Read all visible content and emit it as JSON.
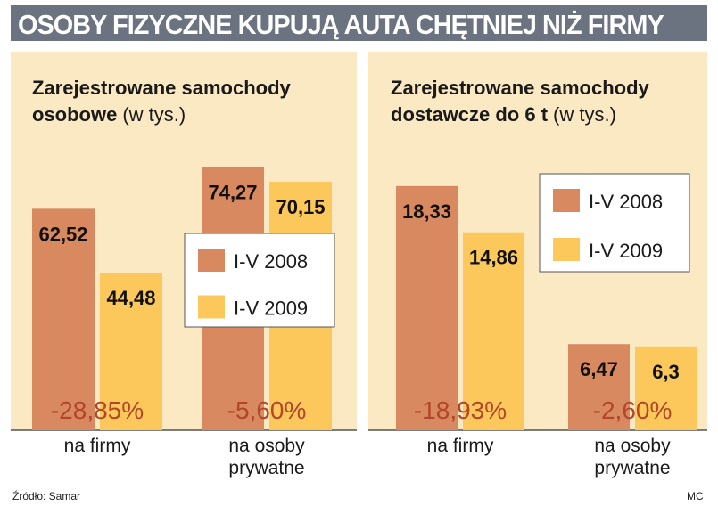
{
  "header": {
    "title": "OSOBY FIZYCZNE KUPUJĄ AUTA CHĘTNIEJ NIŻ FIRMY"
  },
  "footer": {
    "source": "Źródło: Samar",
    "credit": "MC"
  },
  "colors": {
    "panel_bg": "#fbe9c4",
    "series_2008": "#d9895f",
    "series_2009": "#fcc85b",
    "change_text": "#b2452a",
    "header_bg": "#6b7380"
  },
  "chart_data": [
    {
      "type": "bar",
      "title": "Zarejestrowane samochody osobowe",
      "title_unit": "(w tys.)",
      "title_line1": "Zarejestrowane samochody",
      "title_line2": "osobowe",
      "categories": [
        "na firmy",
        "na osoby prywatne"
      ],
      "category_lines": [
        [
          "na firmy"
        ],
        [
          "na osoby",
          "prywatne"
        ]
      ],
      "series": [
        {
          "name": "I-V 2008",
          "values": [
            62.52,
            74.27
          ],
          "labels": [
            "62,52",
            "74,27"
          ]
        },
        {
          "name": "I-V 2009",
          "values": [
            44.48,
            70.15
          ],
          "labels": [
            "44,48",
            "70,15"
          ]
        }
      ],
      "changes": [
        "-28,85%",
        "-5,60%"
      ],
      "ylim": [
        0,
        88
      ]
    },
    {
      "type": "bar",
      "title": "Zarejestrowane samochody dostawcze do 6 t",
      "title_unit": "(w tys.)",
      "title_line1": "Zarejestrowane samochody",
      "title_line2": "dostawcze do 6 t",
      "categories": [
        "na firmy",
        "na osoby prywatne"
      ],
      "category_lines": [
        [
          "na firmy"
        ],
        [
          "na osoby",
          "prywatne"
        ]
      ],
      "series": [
        {
          "name": "I-V 2008",
          "values": [
            18.33,
            6.47
          ],
          "labels": [
            "18,33",
            "6,47"
          ]
        },
        {
          "name": "I-V 2009",
          "values": [
            14.86,
            6.3
          ],
          "labels": [
            "14,86",
            "6,3"
          ]
        }
      ],
      "changes": [
        "-18,93%",
        "-2,60%"
      ],
      "ylim": [
        0,
        23.4
      ]
    }
  ]
}
